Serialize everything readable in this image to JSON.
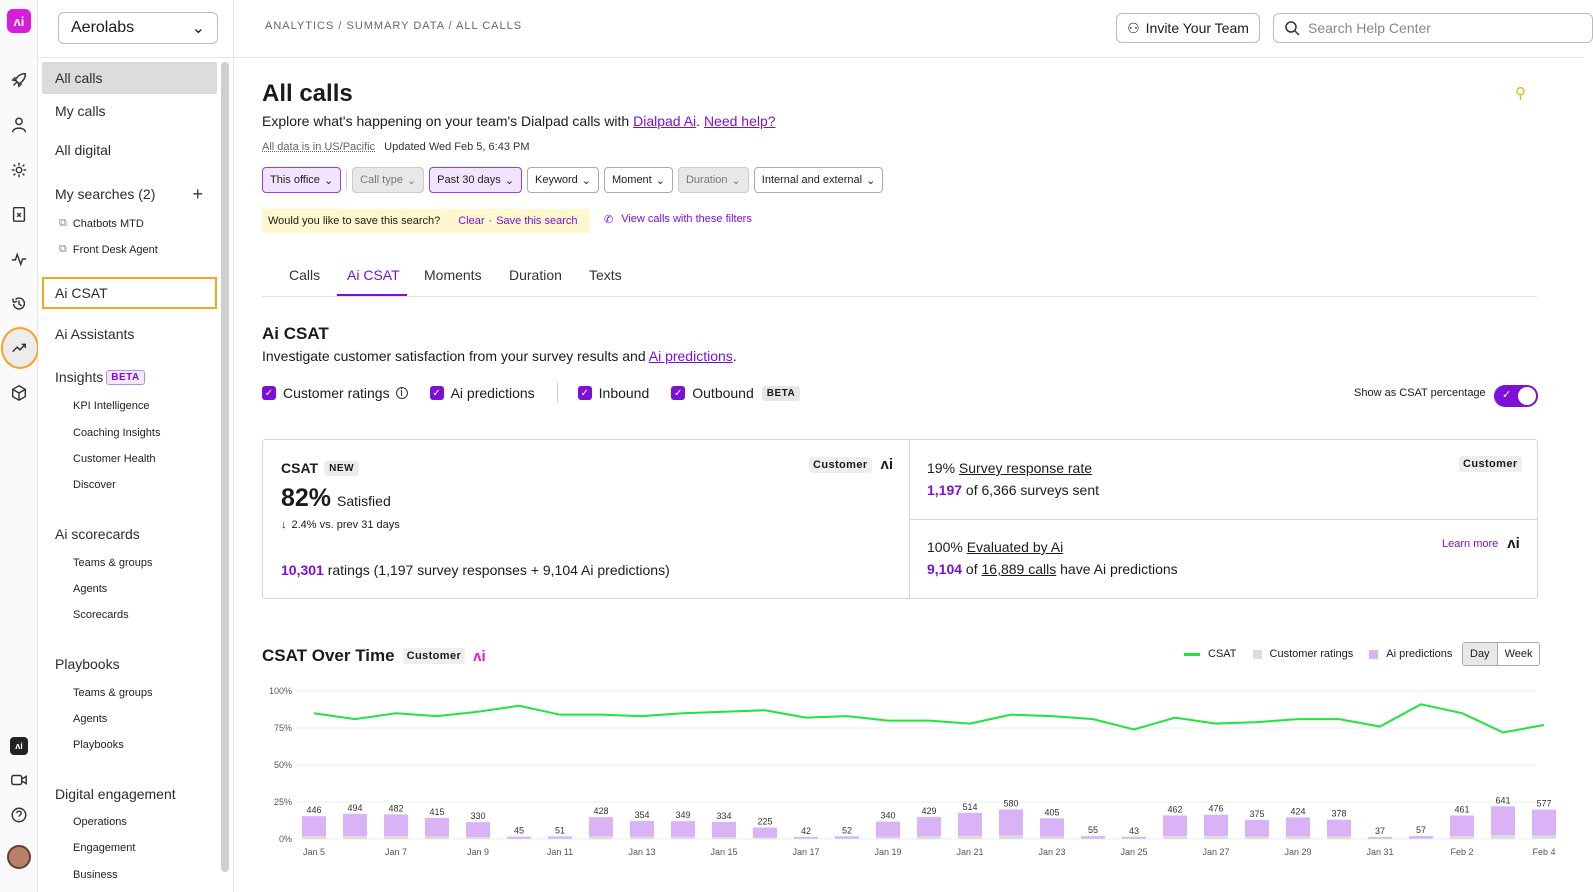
{
  "rail": {
    "logo": "ʌi",
    "icons": [
      "rocket-icon",
      "person-icon",
      "gear-icon",
      "clipboard-icon",
      "pulse-icon",
      "history-icon",
      "trending-icon",
      "cube-icon"
    ],
    "bottom": [
      "dialpad-ai-icon",
      "video-icon",
      "help-icon",
      "avatar"
    ]
  },
  "workspace": "Aerolabs",
  "sidebar": {
    "top_items": [
      {
        "label": "All calls",
        "selected": true
      },
      {
        "label": "My calls"
      },
      {
        "label": "All digital"
      }
    ],
    "my_searches_label": "My searches (2)",
    "saved_searches": [
      "Chatbots MTD",
      "Front Desk Agent"
    ],
    "ai_csat": "Ai CSAT",
    "ai_assistants": "Ai Assistants",
    "insights": "Insights",
    "beta": "BETA",
    "insights_items": [
      "KPI Intelligence",
      "Coaching Insights",
      "Customer Health",
      "Discover"
    ],
    "ai_scorecards": "Ai scorecards",
    "scorecard_items": [
      "Teams & groups",
      "Agents",
      "Scorecards"
    ],
    "playbooks": "Playbooks",
    "playbook_items": [
      "Teams & groups",
      "Agents",
      "Playbooks"
    ],
    "digital_engagement": "Digital engagement",
    "digital_items": [
      "Operations",
      "Engagement",
      "Business"
    ]
  },
  "topbar": {
    "breadcrumb": "ANALYTICS / SUMMARY DATA / ALL CALLS",
    "invite": "Invite Your Team",
    "search_placeholder": "Search Help Center"
  },
  "page": {
    "title": "All calls",
    "desc_prefix": "Explore what's happening on your team's Dialpad calls with ",
    "desc_link1": "Dialpad Ai",
    "desc_sep": ". ",
    "desc_link2": "Need help?",
    "tz": "All data is in US/Pacific",
    "updated": "Updated Wed Feb 5, 6:43 PM"
  },
  "filters": [
    {
      "label": "This office",
      "state": "on"
    },
    {
      "label": "Call type",
      "state": "off"
    },
    {
      "label": "Past 30 days",
      "state": "on"
    },
    {
      "label": "Keyword",
      "state": ""
    },
    {
      "label": "Moment",
      "state": ""
    },
    {
      "label": "Duration",
      "state": "off"
    },
    {
      "label": "Internal and external",
      "state": ""
    }
  ],
  "savebar": {
    "question": "Would you like to save this search?",
    "clear": "Clear",
    "dot": "·",
    "save": "Save this search",
    "view": "View calls with these filters"
  },
  "tabs": [
    "Calls",
    "Ai CSAT",
    "Moments",
    "Duration",
    "Texts"
  ],
  "csat_section": {
    "title": "Ai CSAT",
    "desc": "Investigate customer satisfaction from your survey results and ",
    "desc_link": "Ai predictions",
    "desc_end": ".",
    "checks": [
      "Customer ratings",
      "Ai predictions",
      "Inbound",
      "Outbound"
    ],
    "beta": "BETA",
    "toggle_label": "Show as CSAT percentage"
  },
  "card_csat": {
    "label": "CSAT",
    "new": "NEW",
    "tag": "Customer",
    "ai_mark": "ʌi",
    "value": "82%",
    "value_suffix": "Satisfied",
    "delta": "2.4% vs. prev 31 days",
    "ratings_num": "10,301",
    "ratings_text": " ratings (1,197 survey responses + 9,104 Ai predictions)"
  },
  "card_survey": {
    "pct": "19%",
    "label": "Survey response rate",
    "tag": "Customer",
    "num": "1,197",
    "text": " of 6,366 surveys sent"
  },
  "card_eval": {
    "pct": "100%",
    "label": "Evaluated by Ai",
    "learn": "Learn more",
    "ai_mark": "ʌi",
    "num": "9,104",
    "text_of": " of ",
    "calls": "16,889 calls",
    "text_end": " have Ai predictions"
  },
  "chart_header": {
    "title": "CSAT Over Time",
    "tag": "Customer",
    "ai_mark": "ʌi",
    "legend": [
      "CSAT",
      "Customer ratings",
      "Ai predictions"
    ],
    "day": "Day",
    "week": "Week"
  },
  "colors": {
    "accent": "#7c10d8",
    "csat_line": "#1ee63c",
    "customer_bar": "#dcdcdc",
    "ai_bar": "#d9b3f5"
  },
  "chart_data": {
    "type": "bar",
    "x_tick_labels": [
      "Jan 5",
      "Jan 7",
      "Jan 9",
      "Jan 11",
      "Jan 13",
      "Jan 15",
      "Jan 17",
      "Jan 19",
      "Jan 21",
      "Jan 23",
      "Jan 25",
      "Jan 27",
      "Jan 29",
      "Jan 31",
      "Feb 2",
      "Feb 4"
    ],
    "y_tick_labels": [
      "100%",
      "75%",
      "50%",
      "25%",
      "0%"
    ],
    "ylim": [
      0,
      100
    ],
    "bar_counts": [
      446,
      494,
      482,
      415,
      330,
      45,
      51,
      428,
      354,
      349,
      334,
      225,
      42,
      52,
      340,
      429,
      514,
      580,
      405,
      55,
      43,
      462,
      476,
      375,
      424,
      378,
      37,
      57,
      461,
      641,
      577
    ],
    "csat_pct": [
      85,
      81,
      85,
      83,
      86,
      90,
      84,
      84,
      83,
      85,
      86,
      87,
      82,
      83,
      80,
      80,
      78,
      84,
      83,
      81,
      74,
      82,
      78,
      79,
      81,
      81,
      76,
      91,
      85,
      72,
      77
    ],
    "bar_max": 2900
  }
}
